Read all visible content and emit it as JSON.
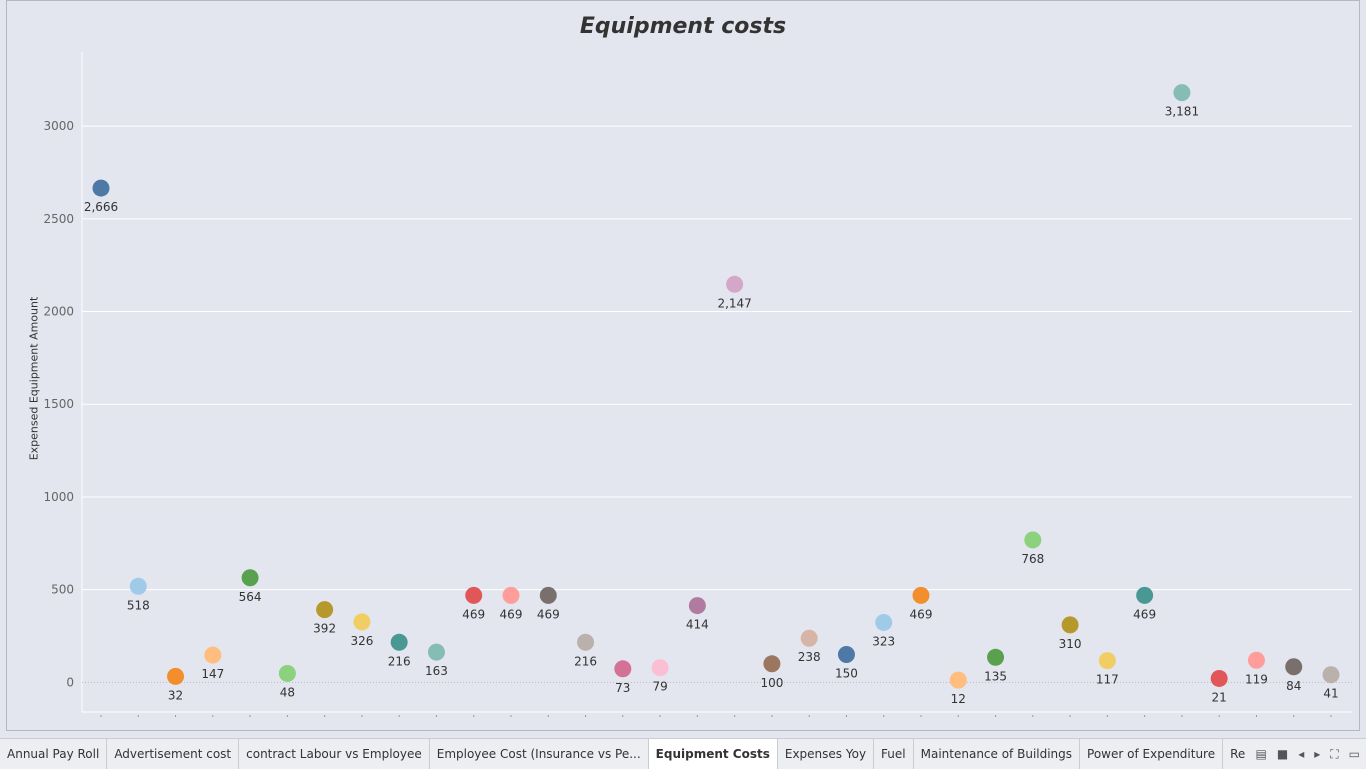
{
  "chart_data": {
    "type": "scatter",
    "title": "Equipment costs",
    "ylabel": "Expensed Equipment Amount",
    "xlabel": "",
    "ylim": [
      -160,
      3400
    ],
    "yticks": [
      0,
      500,
      1000,
      1500,
      2000,
      2500,
      3000
    ],
    "grid": true,
    "legend": "none",
    "points": [
      {
        "value": 2666,
        "label": "2,666",
        "color": "#4e79a7"
      },
      {
        "value": 518,
        "label": "518",
        "color": "#a0cbe8"
      },
      {
        "value": 32,
        "label": "32",
        "color": "#f28e2b"
      },
      {
        "value": 147,
        "label": "147",
        "color": "#ffbe7d"
      },
      {
        "value": 564,
        "label": "564",
        "color": "#59a14f"
      },
      {
        "value": 48,
        "label": "48",
        "color": "#8cd17d"
      },
      {
        "value": 392,
        "label": "392",
        "color": "#b6992d"
      },
      {
        "value": 326,
        "label": "326",
        "color": "#f1ce63"
      },
      {
        "value": 216,
        "label": "216",
        "color": "#499894"
      },
      {
        "value": 163,
        "label": "163",
        "color": "#86bcb6"
      },
      {
        "value": 469,
        "label": "469",
        "color": "#e15759"
      },
      {
        "value": 469,
        "label": "469",
        "color": "#ff9d9a"
      },
      {
        "value": 469,
        "label": "469",
        "color": "#79706e"
      },
      {
        "value": 216,
        "label": "216",
        "color": "#bab0ac"
      },
      {
        "value": 73,
        "label": "73",
        "color": "#d37295"
      },
      {
        "value": 79,
        "label": "79",
        "color": "#fabfd2"
      },
      {
        "value": 414,
        "label": "414",
        "color": "#b07aa1"
      },
      {
        "value": 2147,
        "label": "2,147",
        "color": "#d4a6c8"
      },
      {
        "value": 100,
        "label": "100",
        "color": "#9d7660"
      },
      {
        "value": 238,
        "label": "238",
        "color": "#d7b5a6"
      },
      {
        "value": 150,
        "label": "150",
        "color": "#4e79a7"
      },
      {
        "value": 323,
        "label": "323",
        "color": "#a0cbe8"
      },
      {
        "value": 469,
        "label": "469",
        "color": "#f28e2b"
      },
      {
        "value": 12,
        "label": "12",
        "color": "#ffbe7d"
      },
      {
        "value": 135,
        "label": "135",
        "color": "#59a14f"
      },
      {
        "value": 768,
        "label": "768",
        "color": "#8cd17d"
      },
      {
        "value": 310,
        "label": "310",
        "color": "#b6992d"
      },
      {
        "value": 117,
        "label": "117",
        "color": "#f1ce63"
      },
      {
        "value": 469,
        "label": "469",
        "color": "#499894"
      },
      {
        "value": 3181,
        "label": "3,181",
        "color": "#86bcb6"
      },
      {
        "value": 21,
        "label": "21",
        "color": "#e15759"
      },
      {
        "value": 119,
        "label": "119",
        "color": "#ff9d9a"
      },
      {
        "value": 84,
        "label": "84",
        "color": "#79706e"
      },
      {
        "value": 41,
        "label": "41",
        "color": "#bab0ac"
      }
    ]
  },
  "tabs": [
    {
      "label": "Annual Pay Roll",
      "active": false
    },
    {
      "label": "Advertisement cost",
      "active": false
    },
    {
      "label": "contract Labour vs Employee",
      "active": false
    },
    {
      "label": "Employee Cost (Insurance vs Pe...",
      "active": false
    },
    {
      "label": "Equipment Costs",
      "active": true
    },
    {
      "label": "Expenses Yoy",
      "active": false
    },
    {
      "label": "Fuel",
      "active": false
    },
    {
      "label": "Maintenance of Buildings",
      "active": false
    },
    {
      "label": "Power  of Expenditure",
      "active": false
    },
    {
      "label": "Rental Paym",
      "active": false
    }
  ],
  "tab_controls": [
    {
      "name": "sheet-sorter-icon",
      "glyph": "▤"
    },
    {
      "name": "filmstrip-icon",
      "glyph": "■"
    },
    {
      "name": "previous-sheet-icon",
      "glyph": "◂"
    },
    {
      "name": "next-sheet-icon",
      "glyph": "▸"
    },
    {
      "name": "fullscreen-icon",
      "glyph": "⛶"
    },
    {
      "name": "presentation-mode-icon",
      "glyph": "▭"
    }
  ]
}
